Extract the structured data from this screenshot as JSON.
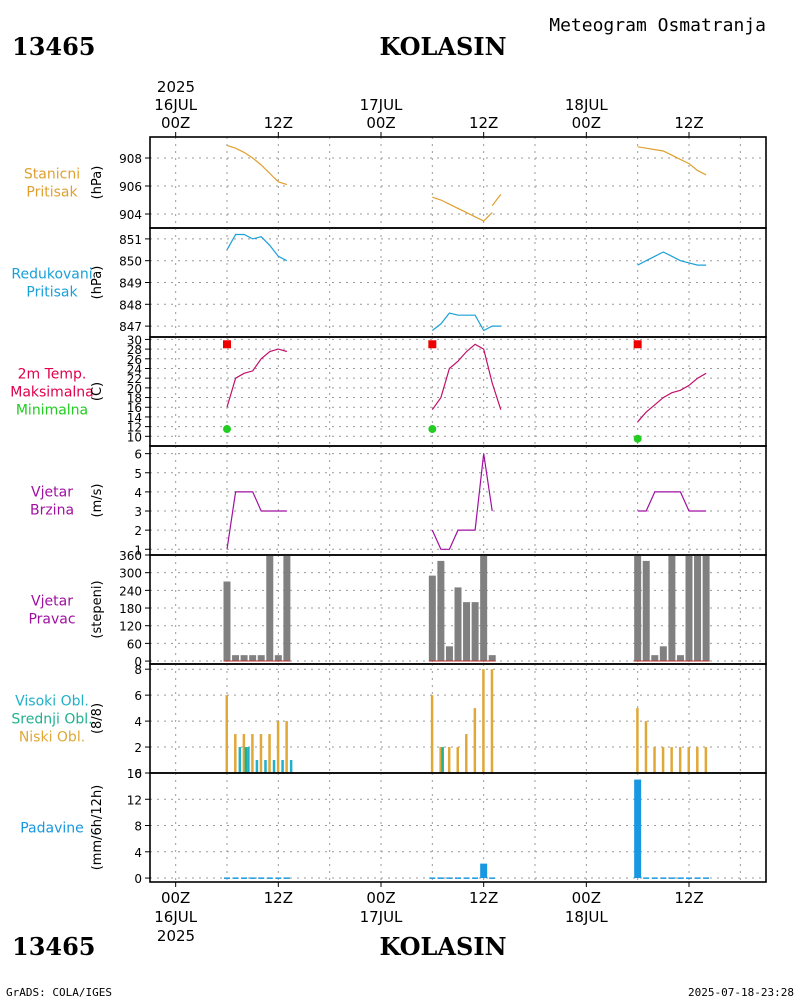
{
  "header": {
    "station_id": "13465",
    "station_name": "KOLASIN",
    "product": "Meteogram Osmatranja"
  },
  "footer": {
    "station_id": "13465",
    "station_name": "KOLASIN",
    "credit": "GrADS: COLA/IGES",
    "timestamp": "2025-07-18-23:28"
  },
  "time_axis": {
    "top_year": "2025",
    "bottom_year": "2025",
    "dates": [
      "16JUL",
      "17JUL",
      "18JUL"
    ],
    "ticks": [
      "00Z",
      "12Z",
      "00Z",
      "12Z",
      "00Z",
      "12Z"
    ],
    "range_hours": [
      -3,
      69
    ]
  },
  "colors": {
    "pressure": "#e0a030",
    "reduced": "#1aa0d8",
    "tmax_label": "#e0004e",
    "tmax_marker": "#ee0000",
    "tmin": "#22cc22",
    "temp_line": "#c0106a",
    "wind": "#a010a0",
    "winddir": "#808080",
    "cloud_high": "#20b0c8",
    "cloud_mid": "#20b090",
    "cloud_low": "#e0a838",
    "precip": "#1898e0"
  },
  "chart_data": [
    {
      "type": "line",
      "name": "station-pressure",
      "labels": [
        "Stanicni",
        "Pritisak"
      ],
      "ylabel": "(hPa)",
      "ylim": [
        903,
        909.5
      ],
      "yticks": [
        "904",
        "906",
        "908"
      ],
      "series": [
        {
          "name": "Stanicni Pritisak",
          "segments": [
            {
              "x": [
                6,
                7,
                8,
                9,
                10,
                11,
                12,
                13
              ],
              "y": [
                908.9,
                908.7,
                908.4,
                908.0,
                907.5,
                906.9,
                906.3,
                906.1
              ]
            },
            {
              "x": [
                30,
                31,
                32,
                33,
                34,
                35,
                36,
                37
              ],
              "y": [
                905.2,
                905.0,
                904.7,
                904.4,
                904.1,
                903.8,
                903.5,
                904.1
              ]
            },
            {
              "x": [
                37,
                38
              ],
              "y": [
                904.6,
                905.4
              ]
            },
            {
              "x": [
                54,
                55,
                56,
                57,
                58,
                59,
                60,
                61,
                62
              ],
              "y": [
                908.8,
                908.7,
                908.6,
                908.5,
                908.2,
                907.9,
                907.6,
                907.1,
                906.8
              ]
            }
          ]
        }
      ]
    },
    {
      "type": "line",
      "name": "reduced-pressure",
      "labels": [
        "Redukovani",
        "Pritisak"
      ],
      "ylabel": "(hPa)",
      "ylim": [
        846.5,
        851.5
      ],
      "yticks": [
        "847",
        "848",
        "849",
        "850",
        "851"
      ],
      "series": [
        {
          "name": "Redukovani Pritisak",
          "segments": [
            {
              "x": [
                6,
                7,
                8,
                9,
                10,
                11,
                12,
                13
              ],
              "y": [
                850.5,
                851.2,
                851.2,
                851.0,
                851.1,
                850.7,
                850.2,
                850.0
              ]
            },
            {
              "x": [
                30,
                31,
                32,
                33,
                34,
                35,
                36,
                37,
                38
              ],
              "y": [
                846.8,
                847.1,
                847.6,
                847.5,
                847.5,
                847.5,
                846.8,
                847.0,
                847.0
              ]
            },
            {
              "x": [
                54,
                55,
                56,
                57,
                58,
                59,
                60,
                61,
                62
              ],
              "y": [
                849.8,
                850.0,
                850.2,
                850.4,
                850.2,
                850.0,
                849.9,
                849.8,
                849.8
              ]
            }
          ]
        }
      ]
    },
    {
      "type": "line",
      "name": "temperature-2m",
      "labels": [
        "2m Temp.",
        "Maksimalna",
        "Minimalna"
      ],
      "ylabel": "(C)",
      "ylim": [
        8,
        30.5
      ],
      "yticks": [
        "10",
        "12",
        "14",
        "16",
        "18",
        "20",
        "22",
        "24",
        "26",
        "28",
        "30"
      ],
      "series": [
        {
          "name": "2m Temp.",
          "segments": [
            {
              "x": [
                6,
                7,
                8,
                9,
                10,
                11,
                12,
                13
              ],
              "y": [
                16,
                22,
                23,
                23.5,
                26,
                27.5,
                28,
                27.5
              ]
            },
            {
              "x": [
                30,
                31,
                32,
                33,
                34,
                35,
                36,
                37,
                38
              ],
              "y": [
                15.5,
                18,
                24,
                25.5,
                27.5,
                29,
                28,
                21,
                15.5
              ]
            },
            {
              "x": [
                54,
                55,
                56,
                57,
                58,
                59,
                60,
                61,
                62
              ],
              "y": [
                13,
                15,
                16.5,
                18,
                19,
                19.5,
                20.5,
                22,
                23
              ]
            }
          ]
        }
      ],
      "tmax": [
        {
          "x": 6,
          "y": 29
        },
        {
          "x": 30,
          "y": 29
        },
        {
          "x": 54,
          "y": 29
        }
      ],
      "tmin": [
        {
          "x": 6,
          "y": 11.5
        },
        {
          "x": 30,
          "y": 11.5
        },
        {
          "x": 54,
          "y": 9.5
        }
      ]
    },
    {
      "type": "line",
      "name": "wind-speed",
      "labels": [
        "Vjetar",
        "Brzina"
      ],
      "ylabel": "(m/s)",
      "ylim": [
        0.7,
        6.4
      ],
      "yticks": [
        "1",
        "2",
        "3",
        "4",
        "5",
        "6"
      ],
      "series": [
        {
          "name": "Vjetar Brzina",
          "segments": [
            {
              "x": [
                6,
                7,
                8,
                9,
                10,
                11,
                12,
                13
              ],
              "y": [
                1,
                4,
                4,
                4,
                3,
                3,
                3,
                3
              ]
            },
            {
              "x": [
                30,
                31,
                32,
                33,
                34,
                35,
                36,
                37
              ],
              "y": [
                2,
                1,
                1,
                2,
                2,
                2,
                6,
                3
              ]
            },
            {
              "x": [
                54,
                55,
                56,
                57,
                58,
                59,
                60,
                61,
                62
              ],
              "y": [
                3,
                3,
                4,
                4,
                4,
                4,
                3,
                3,
                3
              ]
            }
          ]
        }
      ]
    },
    {
      "type": "bar",
      "name": "wind-direction",
      "labels": [
        "Vjetar",
        "Pravac"
      ],
      "ylabel": "(stepeni)",
      "ylim": [
        -10,
        360
      ],
      "yticks": [
        "0",
        "60",
        "120",
        "180",
        "240",
        "300",
        "360"
      ],
      "x": [
        6,
        7,
        8,
        9,
        10,
        11,
        12,
        13,
        30,
        31,
        32,
        33,
        34,
        35,
        36,
        37,
        54,
        55,
        56,
        57,
        58,
        59,
        60,
        61,
        62
      ],
      "values": [
        270,
        20,
        20,
        20,
        20,
        360,
        20,
        360,
        290,
        340,
        50,
        250,
        200,
        200,
        360,
        20,
        360,
        340,
        20,
        50,
        360,
        20,
        360,
        360,
        360
      ]
    },
    {
      "type": "bar",
      "name": "cloud-cover",
      "labels": [
        "Visoki Obl.",
        "Srednji Obl.",
        "Niski Obl."
      ],
      "ylabel": "(8/8)",
      "ylim": [
        0,
        8.4
      ],
      "yticks": [
        "0",
        "2",
        "4",
        "6",
        "8"
      ],
      "x": [
        6,
        7,
        8,
        9,
        10,
        11,
        12,
        13,
        30,
        31,
        32,
        33,
        34,
        35,
        36,
        37,
        54,
        55,
        56,
        57,
        58,
        59,
        60,
        61,
        62
      ],
      "series": [
        {
          "name": "Niski Obl.",
          "values": [
            6,
            3,
            3,
            3,
            3,
            3,
            4,
            4,
            6,
            2,
            2,
            2,
            3,
            5,
            8,
            8,
            5,
            4,
            2,
            2,
            2,
            2,
            2,
            2,
            2
          ]
        },
        {
          "name": "Srednji Obl.",
          "values": [
            0,
            0,
            2,
            0,
            0,
            0,
            0,
            0,
            0,
            2,
            0,
            0,
            0,
            0,
            0,
            0,
            0,
            0,
            0,
            0,
            0,
            0,
            0,
            0,
            0
          ]
        },
        {
          "name": "Visoki Obl.",
          "values": [
            0,
            2,
            2,
            1,
            1,
            1,
            1,
            1,
            0,
            0,
            0,
            0,
            0,
            0,
            0,
            0,
            0,
            0,
            0,
            0,
            0,
            0,
            0,
            0,
            0
          ]
        }
      ]
    },
    {
      "type": "bar",
      "name": "precipitation",
      "labels": [
        "Padavine"
      ],
      "ylabel": "(mm/6h/12h)",
      "ylim": [
        -0.6,
        16
      ],
      "yticks": [
        "0",
        "4",
        "8",
        "12",
        "16"
      ],
      "x": [
        6,
        7,
        8,
        9,
        10,
        11,
        12,
        13,
        30,
        31,
        32,
        33,
        34,
        35,
        36,
        37,
        54,
        55,
        56,
        57,
        58,
        59,
        60,
        61,
        62
      ],
      "values": [
        0.1,
        0.1,
        0.1,
        0.1,
        0.1,
        0.1,
        0.1,
        0.1,
        0.1,
        0.1,
        0.1,
        0.1,
        0.1,
        0.1,
        2.2,
        0.1,
        15,
        0.1,
        0.1,
        0.1,
        0.1,
        0.1,
        0.1,
        0.1,
        0.1
      ]
    }
  ]
}
